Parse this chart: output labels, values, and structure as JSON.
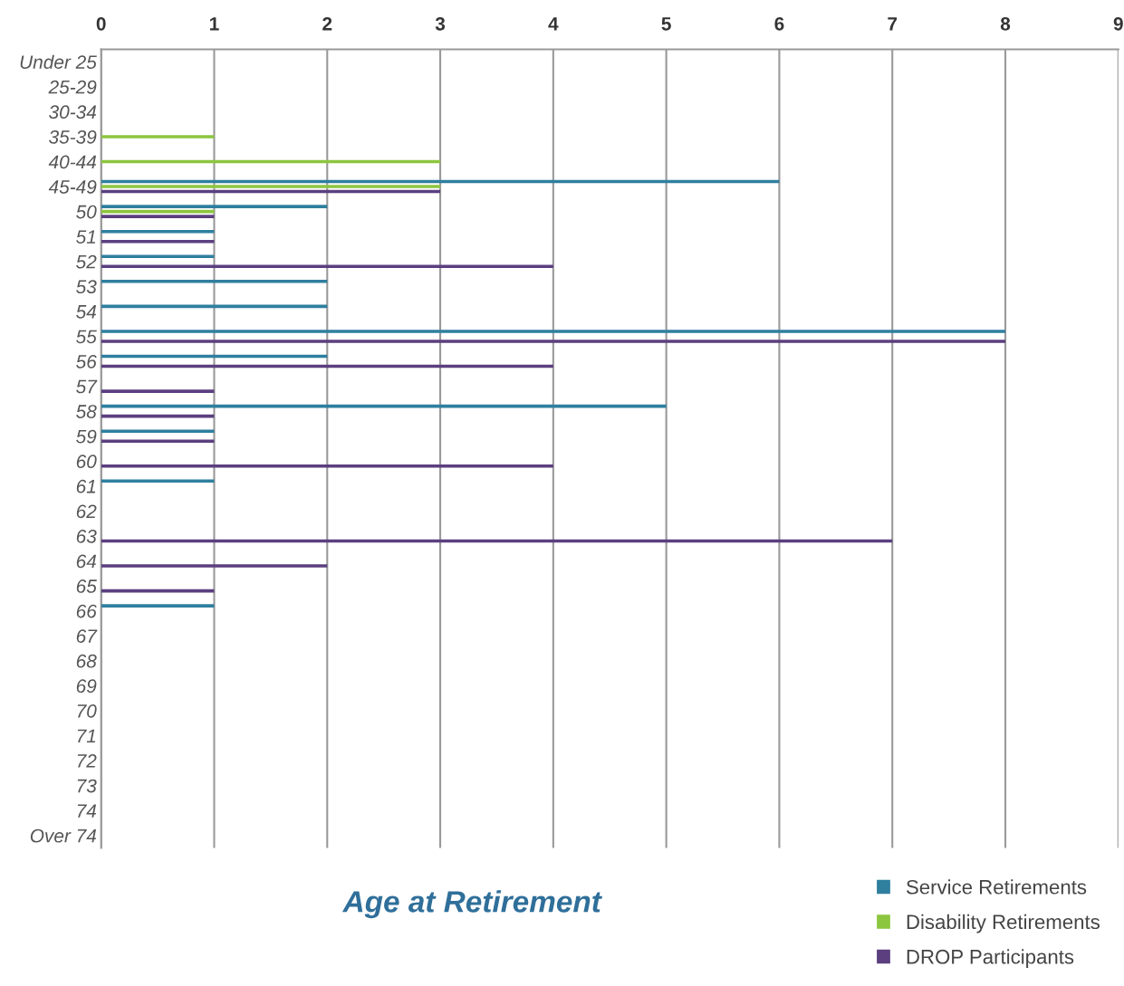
{
  "chart_data": {
    "type": "bar",
    "orientation": "horizontal",
    "title": "Age at Retirement",
    "categories": [
      "Under 25",
      "25-29",
      "30-34",
      "35-39",
      "40-44",
      "45-49",
      "50",
      "51",
      "52",
      "53",
      "54",
      "55",
      "56",
      "57",
      "58",
      "59",
      "60",
      "61",
      "62",
      "63",
      "64",
      "65",
      "66",
      "67",
      "68",
      "69",
      "70",
      "71",
      "72",
      "73",
      "74",
      "Over 74"
    ],
    "series": [
      {
        "name": "Service Retirements",
        "color": "#2f7f9f",
        "values": [
          null,
          null,
          null,
          null,
          null,
          6,
          2,
          1,
          1,
          2,
          2,
          8,
          2,
          null,
          5,
          1,
          null,
          1,
          null,
          null,
          null,
          null,
          1,
          null,
          null,
          null,
          null,
          null,
          null,
          null,
          null,
          null
        ]
      },
      {
        "name": "Disability Retirements",
        "color": "#8cc63f",
        "values": [
          null,
          null,
          null,
          1,
          3,
          3,
          1,
          null,
          null,
          null,
          null,
          null,
          null,
          null,
          null,
          null,
          null,
          null,
          null,
          null,
          null,
          null,
          null,
          null,
          null,
          null,
          null,
          null,
          null,
          null,
          null,
          null
        ]
      },
      {
        "name": "DROP Participants",
        "color": "#5b3f7f",
        "values": [
          null,
          null,
          null,
          null,
          null,
          3,
          1,
          1,
          4,
          null,
          null,
          8,
          4,
          1,
          1,
          1,
          4,
          null,
          null,
          7,
          2,
          1,
          null,
          null,
          null,
          null,
          null,
          null,
          null,
          null,
          null,
          null
        ]
      }
    ],
    "xlim": [
      0,
      9
    ],
    "xticks": [
      0,
      1,
      2,
      3,
      4,
      5,
      6,
      7,
      8,
      9
    ],
    "grid": "x",
    "legend": "bottom right"
  }
}
